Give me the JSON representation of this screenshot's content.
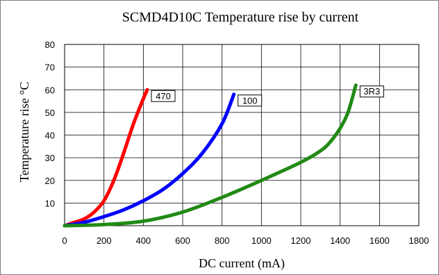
{
  "chart_data": {
    "type": "line",
    "title": "SCMD4D10C Temperature rise by current",
    "xlabel": "DC current (mA)",
    "ylabel": "Temperature rise °C",
    "xlim": [
      0,
      1800
    ],
    "ylim": [
      0,
      80
    ],
    "x_ticks": [
      "0",
      "200",
      "400",
      "600",
      "800",
      "1000",
      "1200",
      "1400",
      "1600",
      "1800"
    ],
    "y_ticks": [
      "10",
      "20",
      "30",
      "40",
      "50",
      "60",
      "70",
      "80"
    ],
    "grid": true,
    "series": [
      {
        "name": "470",
        "color": "#ff0000",
        "x": [
          0,
          50,
          100,
          150,
          200,
          250,
          300,
          350,
          400,
          420
        ],
        "y": [
          0,
          1.5,
          3,
          6,
          11,
          20,
          32,
          45,
          56,
          60
        ]
      },
      {
        "name": "100",
        "color": "#0000ff",
        "x": [
          0,
          100,
          200,
          300,
          400,
          500,
          600,
          700,
          800,
          860
        ],
        "y": [
          0,
          1.5,
          4,
          7,
          11,
          16,
          23,
          32,
          45,
          58
        ]
      },
      {
        "name": "3R3",
        "color": "#218a14",
        "x": [
          0,
          200,
          400,
          600,
          800,
          1000,
          1200,
          1300,
          1350,
          1400,
          1440,
          1480
        ],
        "y": [
          0,
          0.5,
          2,
          6,
          12.5,
          20,
          28,
          33,
          37,
          43,
          50,
          62
        ]
      }
    ]
  }
}
